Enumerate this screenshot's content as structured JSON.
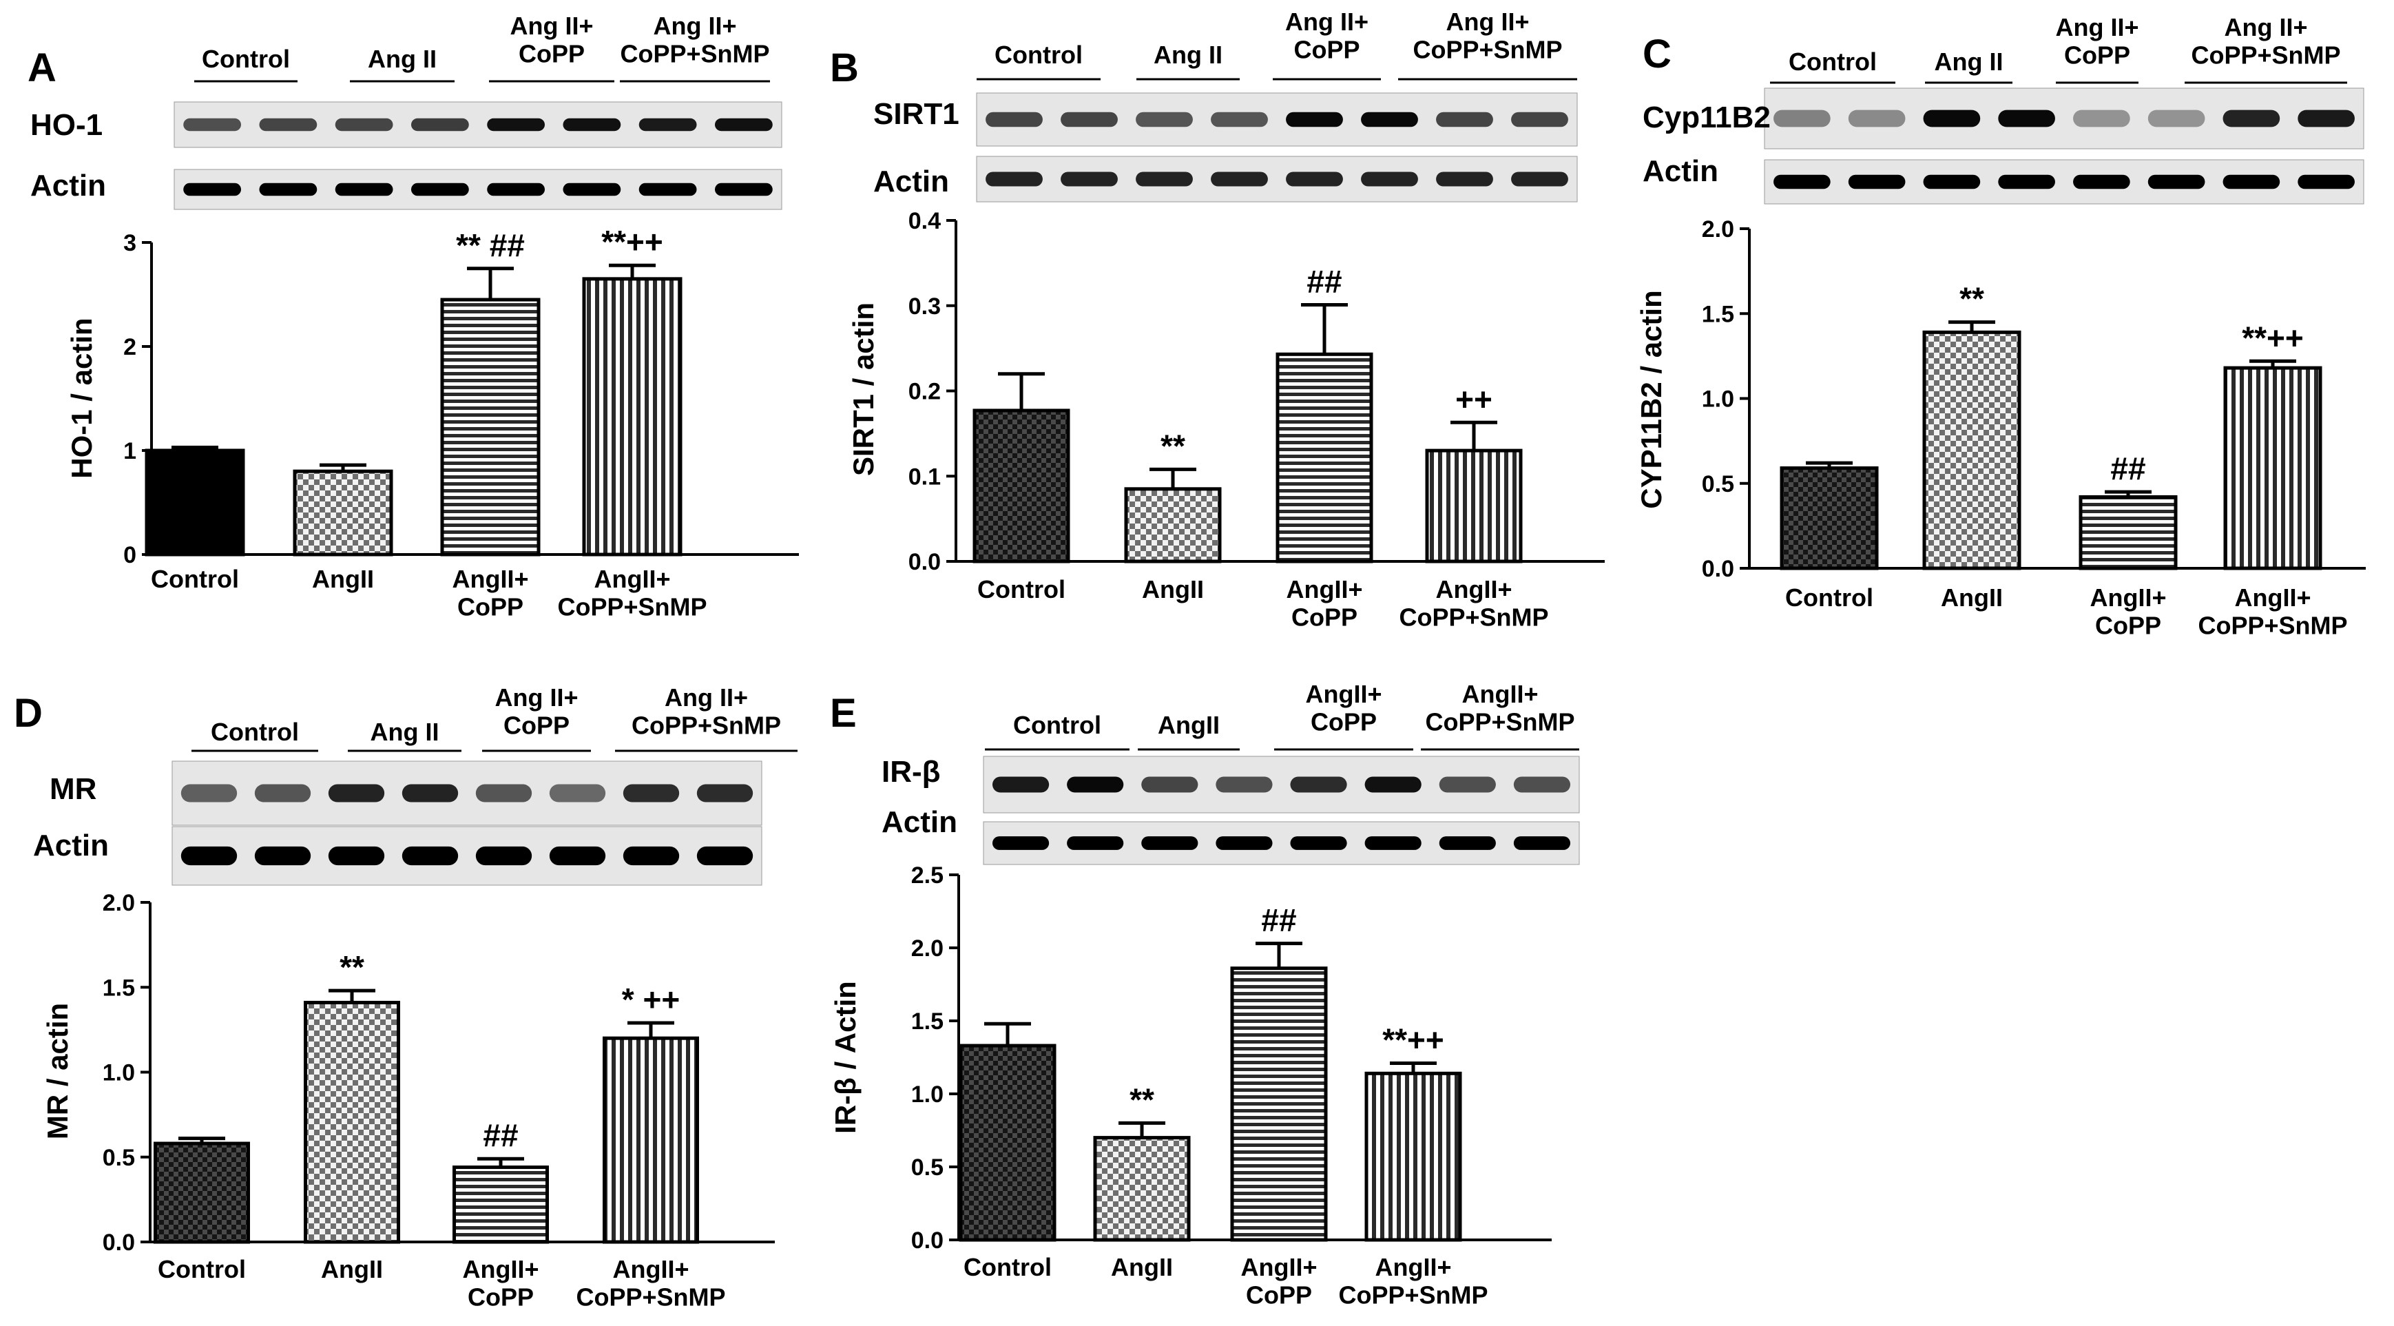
{
  "chart_data": [
    {
      "panel": "A",
      "type": "bar",
      "blot_header": [
        "Control",
        "Ang II",
        "Ang II+\nCoPP",
        "Ang II+\nCoPP+SnMP"
      ],
      "blot_rows": [
        "HO-1",
        "Actin"
      ],
      "ylabel": "HO-1 / actin",
      "ylim": [
        0,
        3
      ],
      "yticks": [
        0,
        1,
        2,
        3
      ],
      "ytick_labels": [
        "0",
        "1",
        "2",
        "3"
      ],
      "categories": [
        "Control",
        "AngII",
        "AngII+\nCoPP",
        "AngII+\nCoPP+SnMP"
      ],
      "values": [
        1.0,
        0.8,
        2.45,
        2.65
      ],
      "errors": [
        0.03,
        0.06,
        0.3,
        0.13
      ],
      "annotations": [
        "",
        "",
        "** ##",
        "**++"
      ],
      "colors": {
        "pattern": [
          "solid",
          "check",
          "hstripe",
          "vstripe"
        ]
      }
    },
    {
      "panel": "B",
      "type": "bar",
      "blot_header": [
        "Control",
        "Ang II",
        "Ang II+\nCoPP",
        "Ang II+\nCoPP+SnMP"
      ],
      "blot_rows": [
        "SIRT1",
        "Actin"
      ],
      "ylabel": "SIRT1 / actin",
      "ylim": [
        0,
        0.4
      ],
      "yticks": [
        0,
        0.1,
        0.2,
        0.3,
        0.4
      ],
      "ytick_labels": [
        "0.0",
        "0.1",
        "0.2",
        "0.3",
        "0.4"
      ],
      "categories": [
        "Control",
        "AngII",
        "AngII+\nCoPP",
        "AngII+\nCoPP+SnMP"
      ],
      "values": [
        0.177,
        0.085,
        0.243,
        0.13
      ],
      "errors": [
        0.043,
        0.023,
        0.058,
        0.033
      ],
      "annotations": [
        "",
        "**",
        "##",
        "++"
      ],
      "colors": {
        "pattern": [
          "dark-check",
          "check",
          "hstripe",
          "vstripe"
        ]
      }
    },
    {
      "panel": "C",
      "type": "bar",
      "blot_header": [
        "Control",
        "Ang II",
        "Ang II+\nCoPP",
        "Ang II+\nCoPP+SnMP"
      ],
      "blot_rows": [
        "Cyp11B2",
        "Actin"
      ],
      "ylabel": "CYP11B2 / actin",
      "ylim": [
        0,
        2.0
      ],
      "yticks": [
        0,
        0.5,
        1.0,
        1.5,
        2.0
      ],
      "ytick_labels": [
        "0.0",
        "0.5",
        "1.0",
        "1.5",
        "2.0"
      ],
      "categories": [
        "Control",
        "AngII",
        "AngII+\nCoPP",
        "AngII+\nCoPP+SnMP"
      ],
      "values": [
        0.59,
        1.39,
        0.42,
        1.18
      ],
      "errors": [
        0.03,
        0.06,
        0.03,
        0.04
      ],
      "annotations": [
        "",
        "**",
        "##",
        "**++"
      ],
      "colors": {
        "pattern": [
          "dark-check",
          "check",
          "hstripe",
          "vstripe"
        ]
      }
    },
    {
      "panel": "D",
      "type": "bar",
      "blot_header": [
        "Control",
        "Ang II",
        "Ang II+\nCoPP",
        "Ang II+\nCoPP+SnMP"
      ],
      "blot_rows": [
        "MR",
        "Actin"
      ],
      "ylabel": "MR / actin",
      "ylim": [
        0,
        2.0
      ],
      "yticks": [
        0,
        0.5,
        1.0,
        1.5,
        2.0
      ],
      "ytick_labels": [
        "0.0",
        "0.5",
        "1.0",
        "1.5",
        "2.0"
      ],
      "categories": [
        "Control",
        "AngII",
        "AngII+\nCoPP",
        "AngII+\nCoPP+SnMP"
      ],
      "values": [
        0.58,
        1.41,
        0.44,
        1.2
      ],
      "errors": [
        0.03,
        0.07,
        0.05,
        0.09
      ],
      "annotations": [
        "",
        "**",
        "##",
        "* ++"
      ],
      "colors": {
        "pattern": [
          "dark-check",
          "check",
          "hstripe",
          "vstripe"
        ]
      }
    },
    {
      "panel": "E",
      "type": "bar",
      "blot_header": [
        "Control",
        "AngII",
        "AngII+\nCoPP",
        "AngII+\nCoPP+SnMP"
      ],
      "blot_rows": [
        "IR-β",
        "Actin"
      ],
      "ylabel": "IR-β / Actin",
      "ylim": [
        0,
        2.5
      ],
      "yticks": [
        0,
        0.5,
        1.0,
        1.5,
        2.0,
        2.5
      ],
      "ytick_labels": [
        "0.0",
        "0.5",
        "1.0",
        "1.5",
        "2.0",
        "2.5"
      ],
      "categories": [
        "Control",
        "AngII",
        "AngII+\nCoPP",
        "AngII+\nCoPP+SnMP"
      ],
      "values": [
        1.33,
        0.7,
        1.86,
        1.14
      ],
      "errors": [
        0.15,
        0.1,
        0.17,
        0.07
      ],
      "annotations": [
        "",
        "**",
        "##",
        "**++"
      ],
      "colors": {
        "pattern": [
          "dark-check",
          "check",
          "hstripe",
          "vstripe"
        ]
      }
    }
  ]
}
